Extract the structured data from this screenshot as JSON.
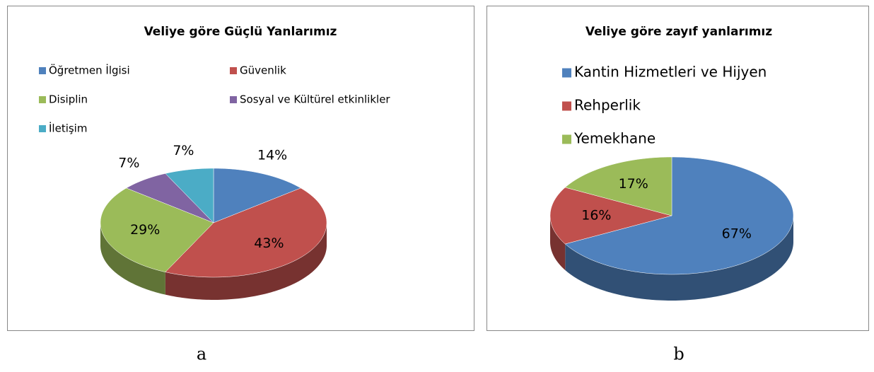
{
  "chart_data": [
    {
      "type": "pie",
      "title": "Veliye göre Güçlü Yanlarımız",
      "caption": "a",
      "categories": [
        "Öğretmen İlgisi",
        "Güvenlik",
        "Disiplin",
        "Sosyal ve Kültürel etkinlikler",
        "İletişim"
      ],
      "values": [
        14,
        43,
        29,
        7,
        7
      ],
      "value_labels": [
        "14%",
        "43%",
        "29%",
        "7%",
        "7%"
      ],
      "colors": [
        "#4f81bd",
        "#c0504d",
        "#9bbb59",
        "#8064a2",
        "#4bacc6"
      ]
    },
    {
      "type": "pie",
      "title": "Veliye göre zayıf yanlarımız",
      "caption": "b",
      "categories": [
        "Kantin Hizmetleri ve Hijyen",
        "Rehperlik",
        "Yemekhane"
      ],
      "values": [
        67,
        16,
        17
      ],
      "value_labels": [
        "67%",
        "16%",
        "17%"
      ],
      "colors": [
        "#4f81bd",
        "#c0504d",
        "#9bbb59"
      ]
    }
  ]
}
